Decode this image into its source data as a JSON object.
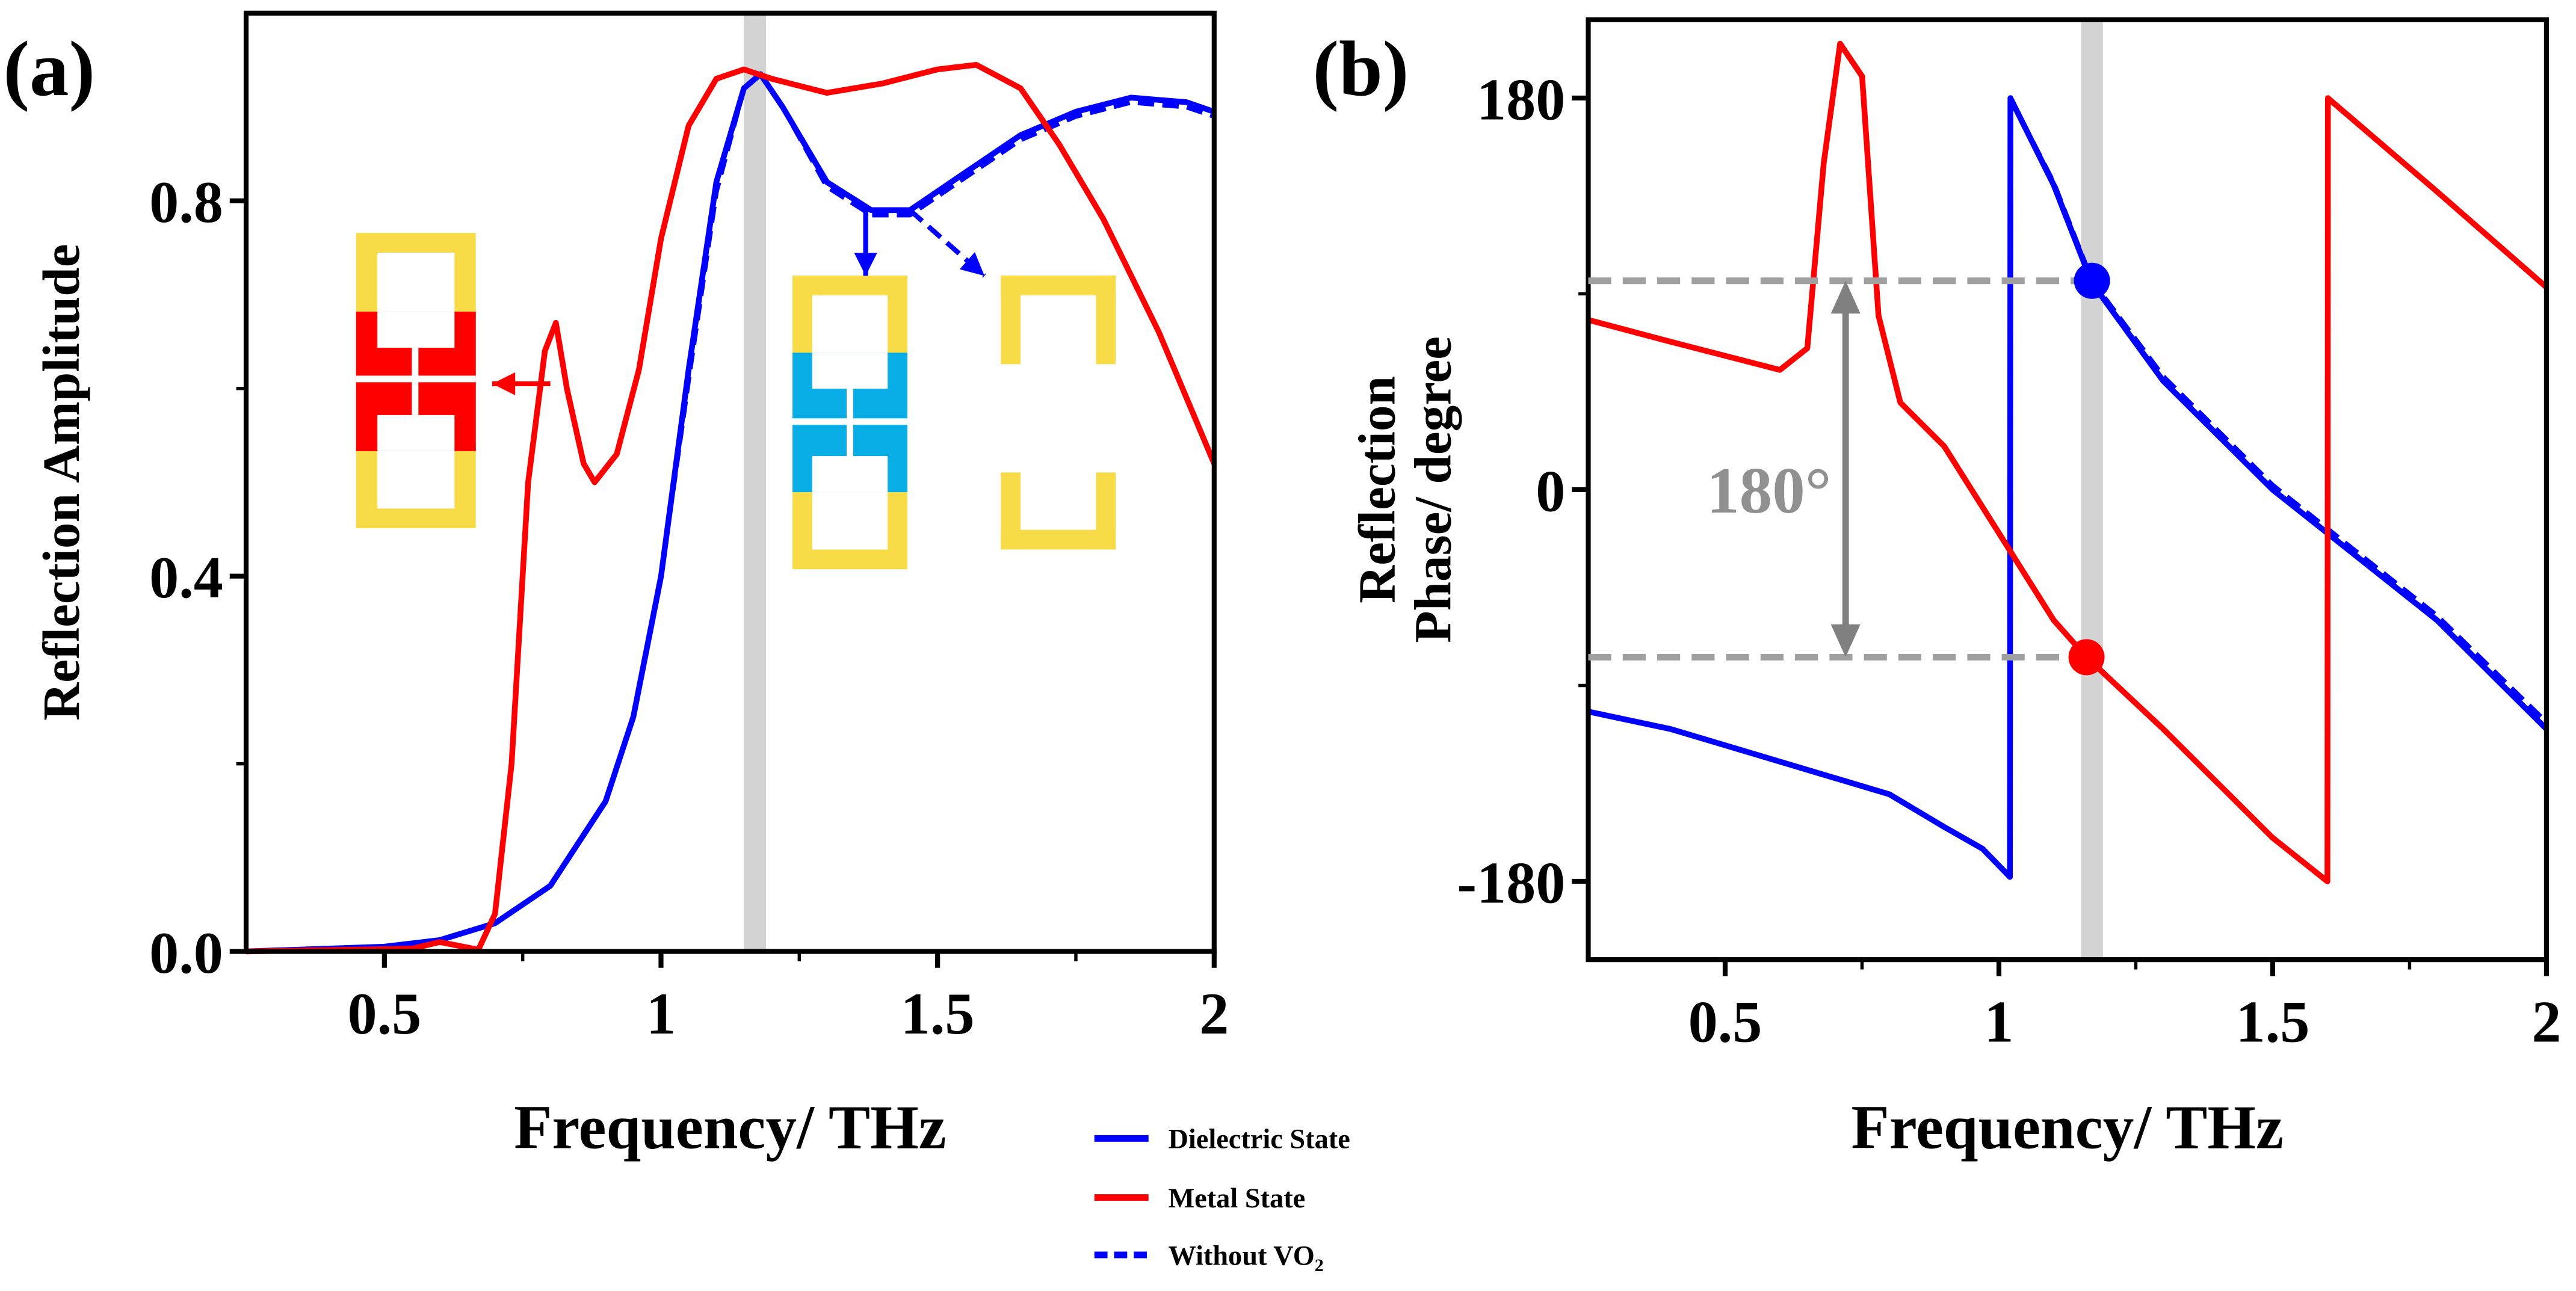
{
  "chart_data": [
    {
      "type": "line",
      "panel_label": "(a)",
      "xlabel": "Frequency/ THz",
      "ylabel": "Reflection Amplitude",
      "xlim": [
        0.25,
        2.0
      ],
      "ylim": [
        0.0,
        1.0
      ],
      "xticks": [
        "0.5",
        "1",
        "1.5",
        "2"
      ],
      "xtick_values": [
        0.5,
        1,
        1.5,
        2
      ],
      "yticks": [
        "0.0",
        "0.4",
        "0.8"
      ],
      "ytick_values": [
        0,
        0.4,
        0.8
      ],
      "highlight_band": [
        1.15,
        1.19
      ],
      "series": [
        {
          "name": "Dielectric State",
          "color": "#0000ff",
          "style": "solid",
          "x": [
            0.25,
            0.5,
            0.6,
            0.7,
            0.8,
            0.9,
            0.95,
            1.0,
            1.05,
            1.1,
            1.15,
            1.18,
            1.22,
            1.3,
            1.38,
            1.45,
            1.55,
            1.65,
            1.75,
            1.85,
            1.95,
            2.0
          ],
          "y": [
            0.0,
            0.005,
            0.012,
            0.03,
            0.07,
            0.16,
            0.25,
            0.4,
            0.62,
            0.82,
            0.92,
            0.935,
            0.9,
            0.82,
            0.79,
            0.79,
            0.83,
            0.87,
            0.895,
            0.91,
            0.905,
            0.895
          ]
        },
        {
          "name": "Metal State",
          "color": "#ff0000",
          "style": "solid",
          "x": [
            0.25,
            0.55,
            0.6,
            0.67,
            0.7,
            0.73,
            0.76,
            0.79,
            0.81,
            0.83,
            0.86,
            0.88,
            0.92,
            0.96,
            1.0,
            1.05,
            1.1,
            1.15,
            1.2,
            1.3,
            1.4,
            1.5,
            1.57,
            1.65,
            1.72,
            1.8,
            1.9,
            2.0
          ],
          "y": [
            0.0,
            0.003,
            0.01,
            0.002,
            0.04,
            0.2,
            0.5,
            0.64,
            0.67,
            0.6,
            0.52,
            0.5,
            0.53,
            0.62,
            0.76,
            0.88,
            0.93,
            0.94,
            0.93,
            0.915,
            0.925,
            0.94,
            0.945,
            0.92,
            0.86,
            0.78,
            0.66,
            0.52
          ]
        },
        {
          "name": "Without VO2",
          "color": "#0000ff",
          "style": "dashed",
          "x": [
            0.25,
            0.5,
            0.6,
            0.7,
            0.8,
            0.9,
            0.95,
            1.0,
            1.05,
            1.1,
            1.15,
            1.18,
            1.22,
            1.3,
            1.38,
            1.45,
            1.55,
            1.65,
            1.75,
            1.85,
            1.95,
            2.0
          ],
          "y": [
            0.0,
            0.005,
            0.012,
            0.03,
            0.07,
            0.16,
            0.25,
            0.4,
            0.61,
            0.81,
            0.92,
            0.935,
            0.9,
            0.815,
            0.785,
            0.785,
            0.825,
            0.865,
            0.89,
            0.905,
            0.9,
            0.89
          ]
        }
      ]
    },
    {
      "type": "line",
      "panel_label": "(b)",
      "xlabel": "Frequency/ THz",
      "ylabel": [
        "Reflection",
        "Phase/ degree"
      ],
      "xlim": [
        0.25,
        2.0
      ],
      "ylim": [
        -216,
        216
      ],
      "xticks": [
        "0.5",
        "1",
        "1.5",
        "2"
      ],
      "xtick_values": [
        0.5,
        1,
        1.5,
        2
      ],
      "yticks": [
        "180",
        "0",
        "-180"
      ],
      "ytick_values": [
        180,
        0,
        -180
      ],
      "highlight_band": [
        1.15,
        1.19
      ],
      "annotation": "180°",
      "markers": [
        {
          "x": 1.17,
          "y": 96,
          "color": "#0000ff"
        },
        {
          "x": 1.16,
          "y": -77,
          "color": "#ff0000"
        }
      ],
      "series": [
        {
          "name": "Dielectric State",
          "color": "#0000ff",
          "style": "solid",
          "x": [
            0.25,
            0.4,
            0.6,
            0.8,
            0.9,
            0.97,
            1.02,
            1.021,
            1.1,
            1.17,
            1.3,
            1.5,
            1.6,
            1.8,
            2.0
          ],
          "y": [
            -102,
            -110,
            -125,
            -140,
            -155,
            -165,
            -178,
            180,
            140,
            95,
            50,
            0,
            -20,
            -60,
            -110
          ]
        },
        {
          "name": "Metal State",
          "color": "#ff0000",
          "style": "solid",
          "x": [
            0.25,
            0.4,
            0.6,
            0.65,
            0.68,
            0.71,
            0.75,
            0.78,
            0.82,
            0.9,
            1.0,
            1.1,
            1.16,
            1.3,
            1.5,
            1.6,
            1.601,
            1.8,
            2.0
          ],
          "y": [
            78,
            68,
            55,
            65,
            150,
            205,
            190,
            80,
            40,
            20,
            -20,
            -60,
            -77,
            -110,
            -160,
            -180,
            180,
            137,
            93
          ]
        },
        {
          "name": "Without VO2",
          "color": "#0000ff",
          "style": "dashed",
          "x": [
            1.021,
            1.1,
            1.17,
            1.3,
            1.5,
            1.6,
            1.8,
            2.0
          ],
          "y": [
            180,
            141,
            96,
            52,
            2,
            -18,
            -58,
            -107
          ]
        }
      ]
    }
  ],
  "legend": [
    {
      "label": "Dielectric State",
      "color": "#0000ff",
      "style": "solid"
    },
    {
      "label": "Metal State",
      "color": "#ff0000",
      "style": "solid"
    },
    {
      "label": "Without VO",
      "sub": "2",
      "color": "#0000ff",
      "style": "dashed"
    }
  ]
}
